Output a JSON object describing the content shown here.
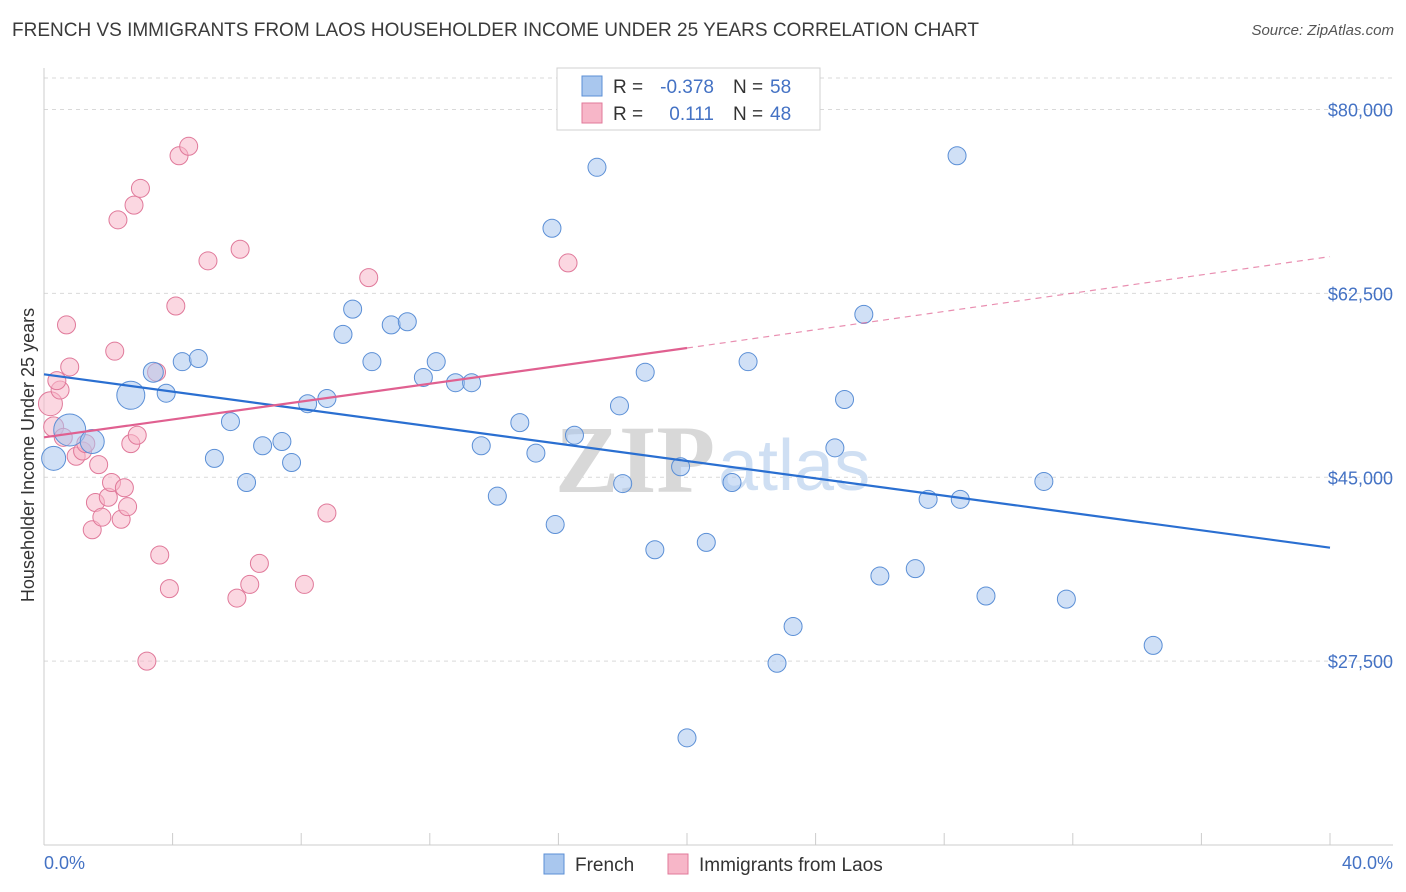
{
  "title": "FRENCH VS IMMIGRANTS FROM LAOS HOUSEHOLDER INCOME UNDER 25 YEARS CORRELATION CHART",
  "source": "Source: ZipAtlas.com",
  "watermark": {
    "zip": "ZIP",
    "atlas": "atlas"
  },
  "colors": {
    "french_fill": "#a9c7ee",
    "french_stroke": "#5b8fd6",
    "french_line": "#2a6fd1",
    "laos_fill": "#f7b6c8",
    "laos_stroke": "#e0799a",
    "laos_line": "#e06090",
    "grid": "#d9d9d9",
    "axis_text": "#4472c4"
  },
  "legend": {
    "rows": [
      {
        "r_label": "R =",
        "r_value": "-0.378",
        "n_label": "N =",
        "n_value": "58"
      },
      {
        "r_label": "R =",
        "r_value": "0.111",
        "n_label": "N =",
        "n_value": "48"
      }
    ]
  },
  "bottom_legend": [
    "French",
    "Immigrants from Laos"
  ],
  "chart_data": {
    "type": "scatter",
    "title": "FRENCH VS IMMIGRANTS FROM LAOS HOUSEHOLDER INCOME UNDER 25 YEARS CORRELATION CHART",
    "xlabel": "",
    "ylabel": "Householder Income Under 25 years",
    "xlim": [
      0,
      40
    ],
    "ylim": [
      10000,
      83000
    ],
    "x_tick_labels": [
      "0.0%",
      "40.0%"
    ],
    "y_ticks": [
      27500,
      45000,
      62500,
      80000
    ],
    "y_tick_labels": [
      "$27,500",
      "$45,000",
      "$62,500",
      "$80,000"
    ],
    "grid": true,
    "legend_position": "top-center",
    "series": [
      {
        "name": "French",
        "points": [
          [
            0.3,
            46800,
            12
          ],
          [
            0.8,
            49500,
            16
          ],
          [
            1.5,
            48400,
            12
          ],
          [
            2.7,
            52800,
            14
          ],
          [
            3.4,
            55000,
            10
          ],
          [
            3.8,
            53000,
            9
          ],
          [
            4.3,
            56000,
            9
          ],
          [
            4.8,
            56300,
            9
          ],
          [
            5.3,
            46800,
            9
          ],
          [
            5.8,
            50300,
            9
          ],
          [
            6.3,
            44500,
            9
          ],
          [
            6.8,
            48000,
            9
          ],
          [
            7.4,
            48400,
            9
          ],
          [
            7.7,
            46400,
            9
          ],
          [
            8.2,
            52000,
            9
          ],
          [
            8.8,
            52500,
            9
          ],
          [
            9.3,
            58600,
            9
          ],
          [
            9.6,
            61000,
            9
          ],
          [
            10.2,
            56000,
            9
          ],
          [
            10.8,
            59500,
            9
          ],
          [
            11.3,
            59800,
            9
          ],
          [
            11.8,
            54500,
            9
          ],
          [
            12.2,
            56000,
            9
          ],
          [
            12.8,
            54000,
            9
          ],
          [
            13.3,
            54000,
            9
          ],
          [
            13.6,
            48000,
            9
          ],
          [
            14.1,
            43200,
            9
          ],
          [
            14.8,
            50200,
            9
          ],
          [
            15.3,
            47300,
            9
          ],
          [
            15.8,
            68700,
            9
          ],
          [
            15.9,
            40500,
            9
          ],
          [
            16.5,
            49000,
            9
          ],
          [
            17.2,
            74500,
            9
          ],
          [
            17.9,
            51800,
            9
          ],
          [
            18.0,
            44400,
            9
          ],
          [
            18.7,
            55000,
            9
          ],
          [
            19.0,
            38100,
            9
          ],
          [
            19.8,
            46000,
            9
          ],
          [
            20.0,
            20200,
            9
          ],
          [
            20.6,
            38800,
            9
          ],
          [
            21.4,
            44500,
            9
          ],
          [
            21.9,
            56000,
            9
          ],
          [
            22.8,
            27300,
            9
          ],
          [
            23.3,
            30800,
            9
          ],
          [
            24.6,
            47800,
            9
          ],
          [
            24.9,
            52400,
            9
          ],
          [
            25.5,
            60500,
            9
          ],
          [
            26.0,
            35600,
            9
          ],
          [
            27.1,
            36300,
            9
          ],
          [
            27.5,
            42900,
            9
          ],
          [
            28.4,
            75600,
            9
          ],
          [
            28.5,
            42900,
            9
          ],
          [
            29.3,
            33700,
            9
          ],
          [
            31.1,
            44600,
            9
          ],
          [
            31.8,
            33400,
            9
          ],
          [
            34.5,
            29000,
            9
          ]
        ]
      },
      {
        "name": "Immigrants from Laos",
        "points": [
          [
            0.2,
            52000,
            12
          ],
          [
            0.3,
            49800,
            10
          ],
          [
            0.5,
            53300,
            9
          ],
          [
            0.4,
            54200,
            9
          ],
          [
            0.6,
            48800,
            9
          ],
          [
            0.7,
            59500,
            9
          ],
          [
            0.8,
            55500,
            9
          ],
          [
            1.0,
            47000,
            9
          ],
          [
            1.2,
            47500,
            9
          ],
          [
            1.3,
            48200,
            9
          ],
          [
            1.5,
            40000,
            9
          ],
          [
            1.6,
            42600,
            9
          ],
          [
            1.7,
            46200,
            9
          ],
          [
            1.8,
            41200,
            9
          ],
          [
            2.0,
            43100,
            9
          ],
          [
            2.1,
            44500,
            9
          ],
          [
            2.2,
            57000,
            9
          ],
          [
            2.3,
            69500,
            9
          ],
          [
            2.4,
            41000,
            9
          ],
          [
            2.5,
            44000,
            9
          ],
          [
            2.6,
            42200,
            9
          ],
          [
            2.7,
            48200,
            9
          ],
          [
            2.8,
            70900,
            9
          ],
          [
            2.9,
            49000,
            9
          ],
          [
            3.0,
            72500,
            9
          ],
          [
            3.2,
            27500,
            9
          ],
          [
            3.5,
            55000,
            9
          ],
          [
            3.6,
            37600,
            9
          ],
          [
            3.9,
            34400,
            9
          ],
          [
            4.1,
            61300,
            9
          ],
          [
            4.2,
            75600,
            9
          ],
          [
            4.5,
            76500,
            9
          ],
          [
            5.1,
            65600,
            9
          ],
          [
            6.0,
            33500,
            9
          ],
          [
            6.1,
            66700,
            9
          ],
          [
            6.4,
            34800,
            9
          ],
          [
            6.7,
            36800,
            9
          ],
          [
            8.1,
            34800,
            9
          ],
          [
            8.8,
            41600,
            9
          ],
          [
            10.1,
            64000,
            9
          ],
          [
            16.3,
            65400,
            9
          ]
        ]
      }
    ],
    "trend_lines": [
      {
        "series": "French",
        "x": [
          0,
          40
        ],
        "y": [
          54800,
          38300
        ],
        "dashed_after": null
      },
      {
        "series": "Immigrants from Laos",
        "x": [
          0,
          20
        ],
        "y": [
          48800,
          57300
        ],
        "dashed_to": [
          40,
          66000
        ]
      }
    ]
  }
}
